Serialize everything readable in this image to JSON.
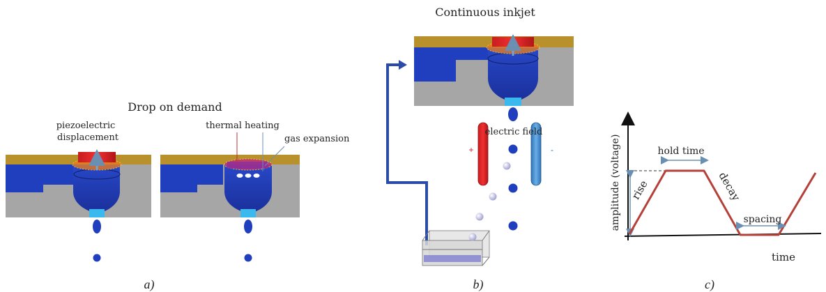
{
  "panel_a": {
    "title": "Drop on demand",
    "left_label_line1": "piezoelectric",
    "left_label_line2": "displacement",
    "right_label_thermal": "thermal heating",
    "right_label_gas": "gas expansion",
    "caption": "a)"
  },
  "panel_b": {
    "title": "Continuous inkjet",
    "field_label": "electric field",
    "plus_sign": "+",
    "minus_sign": "-",
    "caption": "b)"
  },
  "panel_c": {
    "y_axis_label": "amplitude (voltage)",
    "x_axis_label": "time",
    "hold_time_label": "hold time",
    "rise_label": "rise",
    "decay_label": "decay",
    "spacing_label": "spacing",
    "caption": "c)"
  },
  "colors": {
    "substrate_gray": "#a6a6a6",
    "top_gold": "#b8902c",
    "ink_blue": "#1f3fbf",
    "nozzle_cyan": "#39b9ee",
    "piezo_red": "#e8282b",
    "electrode_blue": "#4a8fd0",
    "waveform_red": "#b5403a"
  }
}
